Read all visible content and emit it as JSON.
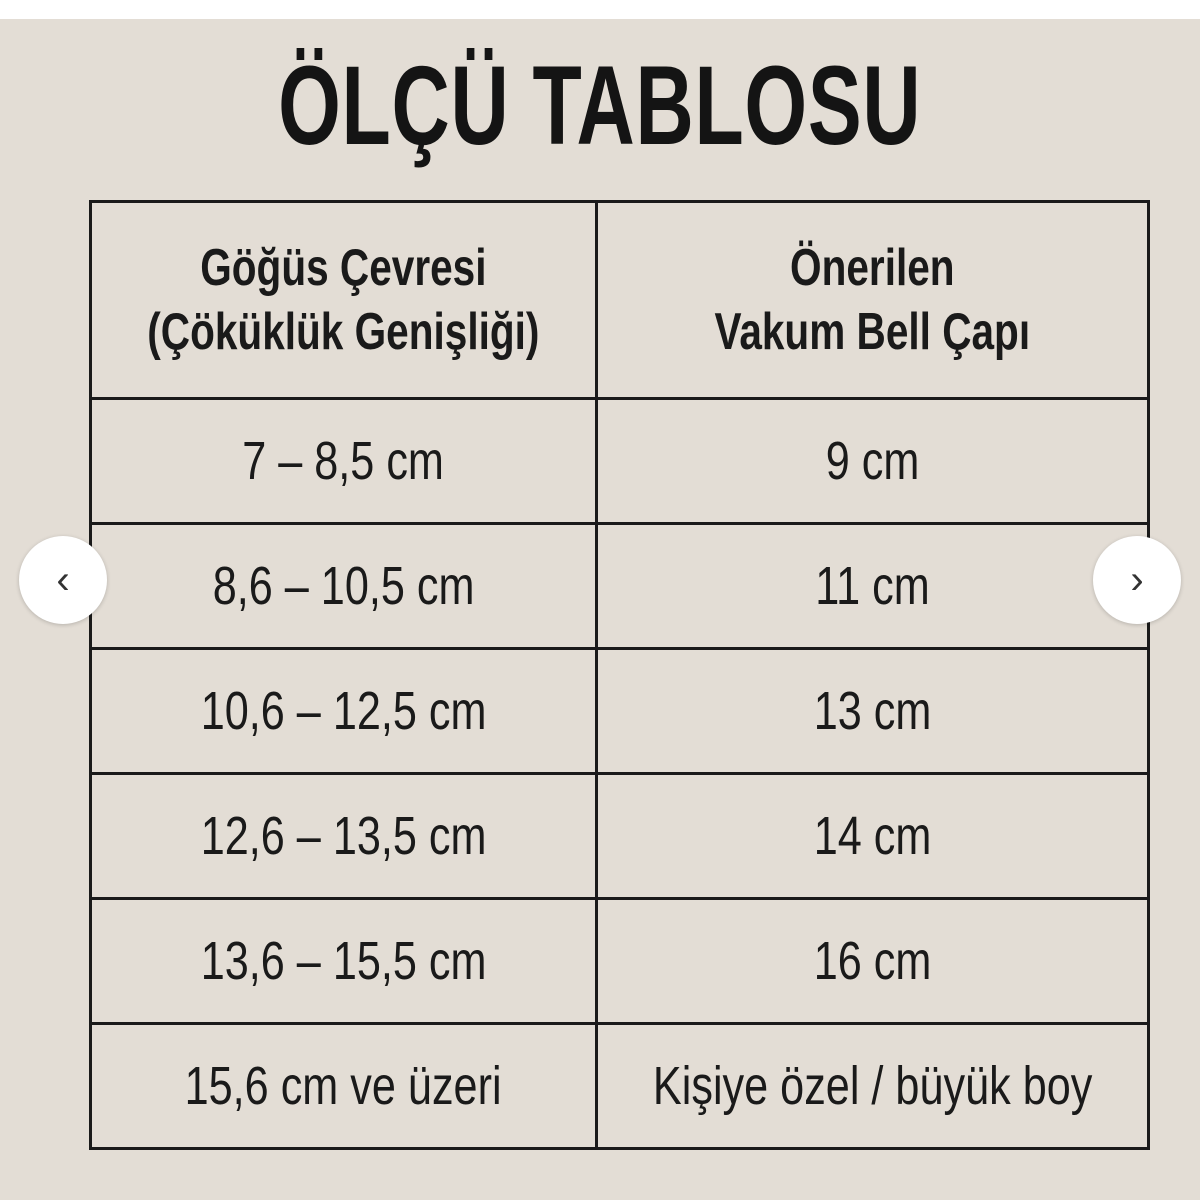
{
  "title": "ÖLÇÜ TABLOSU",
  "table": {
    "headers": [
      "Göğüs Çevresi\n(Çöküklük Genişliği)",
      "Önerilen\nVakum Bell Çapı"
    ],
    "header_lines": [
      [
        "Göğüs Çevresi",
        "(Çöküklük Genişliği)"
      ],
      [
        "Önerilen",
        "Vakum Bell Çapı"
      ]
    ],
    "rows": [
      [
        "7 – 8,5 cm",
        "9 cm"
      ],
      [
        "8,6 – 10,5 cm",
        "11 cm"
      ],
      [
        "10,6 – 12,5 cm",
        "13 cm"
      ],
      [
        "12,6 – 13,5 cm",
        "14 cm"
      ],
      [
        "13,6 – 15,5 cm",
        "16 cm"
      ],
      [
        "15,6 cm ve üzeri",
        "Kişiye özel / büyük boy"
      ]
    ]
  },
  "nav": {
    "prev_icon": "chevron-left-icon",
    "prev_glyph": "‹",
    "next_icon": "chevron-right-icon",
    "next_glyph": "›"
  },
  "colors": {
    "background": "#e3ddd5",
    "text": "#1a1a1a"
  }
}
